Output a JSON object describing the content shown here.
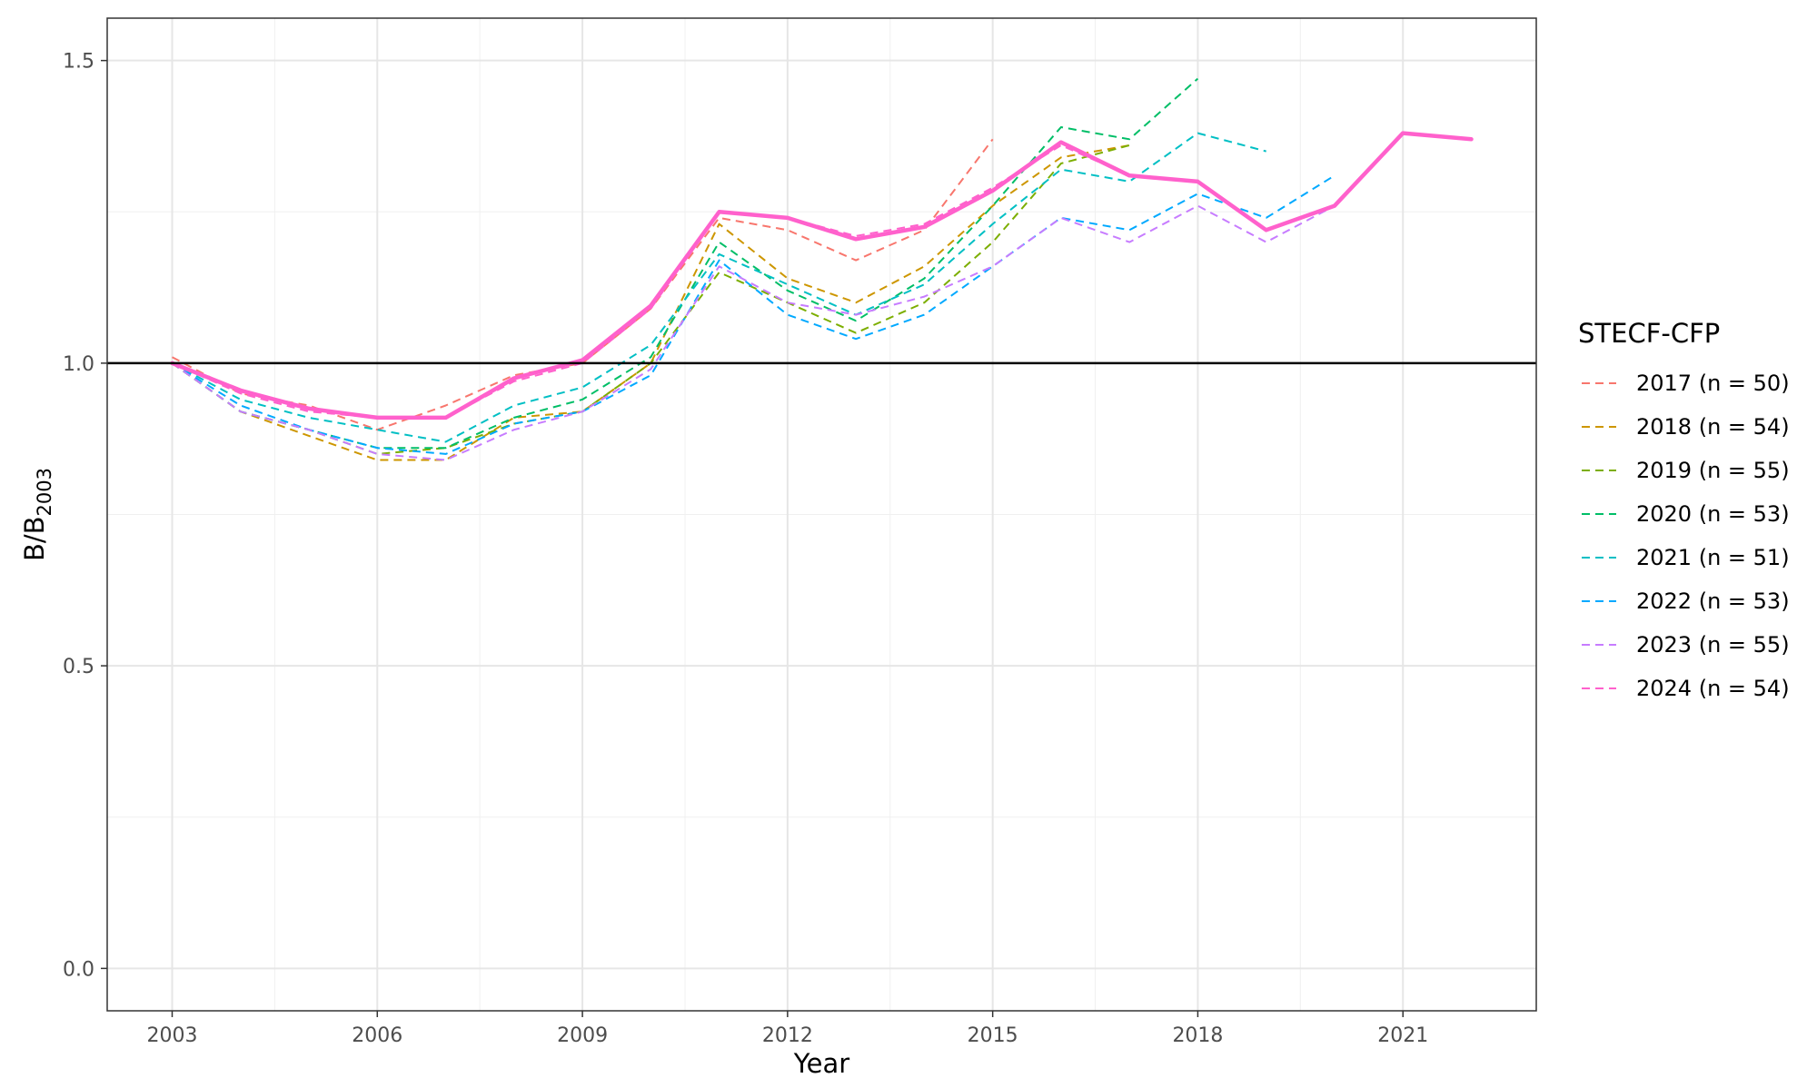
{
  "chart_data": {
    "type": "line",
    "xlabel": "Year",
    "ylabel_base": "B/B",
    "ylabel_sub": "2003",
    "xlim": [
      2002.05,
      2022.95
    ],
    "ylim": [
      -0.07,
      1.57
    ],
    "x_ticks": [
      2003,
      2006,
      2009,
      2012,
      2015,
      2018,
      2021
    ],
    "y_ticks": [
      0.0,
      0.5,
      1.0,
      1.5
    ],
    "x_tick_labels": [
      "2003",
      "2006",
      "2009",
      "2012",
      "2015",
      "2018",
      "2021"
    ],
    "y_tick_labels": [
      "0.0",
      "0.5",
      "1.0",
      "1.5"
    ],
    "reference_line": 1.0,
    "grid": true,
    "legend": {
      "title": "STECF-CFP",
      "position": "right"
    },
    "series": [
      {
        "name": "2017 (n = 50)",
        "color": "#F8766D",
        "style": "dashed",
        "x": [
          2003,
          2004,
          2005,
          2006,
          2007,
          2008,
          2009,
          2010,
          2011,
          2012,
          2013,
          2014,
          2015
        ],
        "y": [
          1.01,
          0.95,
          0.93,
          0.89,
          0.93,
          0.98,
          1.0,
          1.09,
          1.24,
          1.22,
          1.17,
          1.22,
          1.37
        ]
      },
      {
        "name": "2018 (n = 54)",
        "color": "#CD9600",
        "style": "dashed",
        "x": [
          2003,
          2004,
          2005,
          2006,
          2007,
          2008,
          2009,
          2010,
          2011,
          2012,
          2013,
          2014,
          2015,
          2016,
          2017
        ],
        "y": [
          1.0,
          0.92,
          0.88,
          0.84,
          0.84,
          0.91,
          0.92,
          1.0,
          1.23,
          1.14,
          1.1,
          1.16,
          1.26,
          1.34,
          1.36
        ]
      },
      {
        "name": "2019 (n = 55)",
        "color": "#7CAE00",
        "style": "dashed",
        "x": [
          2003,
          2004,
          2005,
          2006,
          2007,
          2008,
          2009,
          2010,
          2011,
          2012,
          2013,
          2014,
          2015,
          2016,
          2017
        ],
        "y": [
          1.0,
          0.92,
          0.89,
          0.85,
          0.86,
          0.9,
          0.92,
          1.0,
          1.15,
          1.1,
          1.05,
          1.1,
          1.2,
          1.33,
          1.36
        ]
      },
      {
        "name": "2020 (n = 53)",
        "color": "#00BE67",
        "style": "dashed",
        "x": [
          2003,
          2004,
          2005,
          2006,
          2007,
          2008,
          2009,
          2010,
          2011,
          2012,
          2013,
          2014,
          2015,
          2016,
          2017,
          2018
        ],
        "y": [
          1.0,
          0.92,
          0.89,
          0.86,
          0.86,
          0.91,
          0.94,
          1.01,
          1.2,
          1.12,
          1.07,
          1.14,
          1.26,
          1.39,
          1.37,
          1.47
        ]
      },
      {
        "name": "2021 (n = 51)",
        "color": "#00BFC4",
        "style": "dashed",
        "x": [
          2003,
          2004,
          2005,
          2006,
          2007,
          2008,
          2009,
          2010,
          2011,
          2012,
          2013,
          2014,
          2015,
          2016,
          2017,
          2018,
          2019
        ],
        "y": [
          1.0,
          0.94,
          0.91,
          0.89,
          0.87,
          0.93,
          0.96,
          1.03,
          1.18,
          1.13,
          1.08,
          1.13,
          1.23,
          1.32,
          1.3,
          1.38,
          1.35
        ]
      },
      {
        "name": "2022 (n = 53)",
        "color": "#00A9FF",
        "style": "dashed",
        "x": [
          2003,
          2004,
          2005,
          2006,
          2007,
          2008,
          2009,
          2010,
          2011,
          2012,
          2013,
          2014,
          2015,
          2016,
          2017,
          2018,
          2019,
          2020
        ],
        "y": [
          1.0,
          0.93,
          0.89,
          0.86,
          0.85,
          0.9,
          0.92,
          0.98,
          1.17,
          1.08,
          1.04,
          1.08,
          1.16,
          1.24,
          1.22,
          1.28,
          1.24,
          1.31
        ]
      },
      {
        "name": "2023 (n = 55)",
        "color": "#C77CFF",
        "style": "dashed",
        "x": [
          2003,
          2004,
          2005,
          2006,
          2007,
          2008,
          2009,
          2010,
          2011,
          2012,
          2013,
          2014,
          2015,
          2016,
          2017,
          2018,
          2019,
          2020,
          2021
        ],
        "y": [
          1.0,
          0.92,
          0.89,
          0.85,
          0.84,
          0.89,
          0.92,
          0.99,
          1.16,
          1.1,
          1.08,
          1.11,
          1.16,
          1.24,
          1.2,
          1.26,
          1.2,
          1.26,
          1.38
        ]
      },
      {
        "name": "2024 (n = 54)",
        "color": "#FF61CC",
        "style": "dashed",
        "x": [
          2003,
          2004,
          2005,
          2006,
          2007,
          2008,
          2009,
          2010,
          2011,
          2012,
          2013,
          2014,
          2015,
          2016,
          2017,
          2018,
          2019,
          2020,
          2021,
          2022
        ],
        "y": [
          1.0,
          0.95,
          0.92,
          0.91,
          0.91,
          0.97,
          1.0,
          1.09,
          1.25,
          1.24,
          1.21,
          1.23,
          1.29,
          1.36,
          1.31,
          1.3,
          1.22,
          1.26,
          1.38,
          1.37
        ]
      }
    ],
    "highlight_series": {
      "color": "#FF61CC",
      "style": "solid",
      "x": [
        2003,
        2004,
        2005,
        2006,
        2007,
        2008,
        2009,
        2010,
        2011,
        2012,
        2013,
        2014,
        2015,
        2016,
        2017,
        2018,
        2019,
        2020,
        2021,
        2022
      ],
      "y": [
        1.0,
        0.955,
        0.925,
        0.91,
        0.91,
        0.975,
        1.005,
        1.095,
        1.25,
        1.24,
        1.205,
        1.225,
        1.285,
        1.365,
        1.31,
        1.3,
        1.22,
        1.26,
        1.38,
        1.37
      ]
    }
  }
}
